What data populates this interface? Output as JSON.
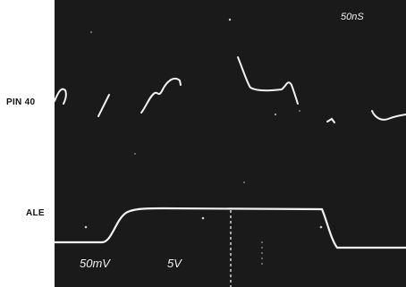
{
  "channels": {
    "pin40_label": "PIN 40",
    "ale_label": "ALE"
  },
  "screen": {
    "timebase": "50nS",
    "ch1_scale": "50mV",
    "ch2_scale": "5V"
  },
  "colors": {
    "screen_background": "#1a1a1a",
    "trace": "#f2f2f2",
    "page_background": "#ffffff"
  }
}
